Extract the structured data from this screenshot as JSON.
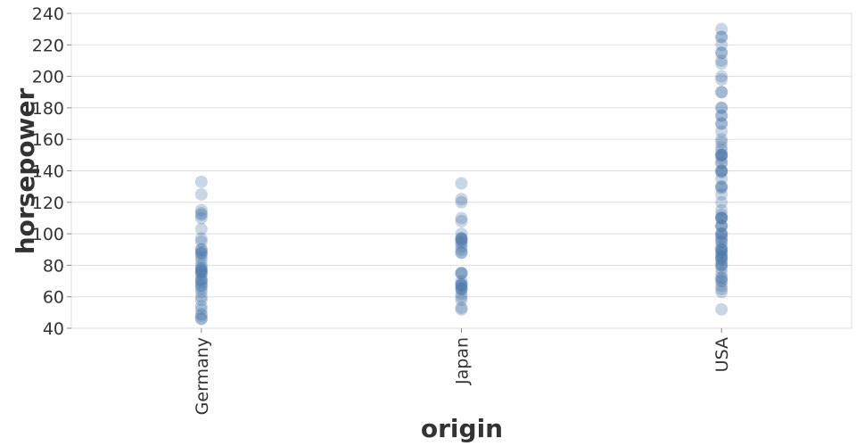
{
  "chart_data": {
    "type": "scatter",
    "xlabel": "origin",
    "ylabel": "horsepower",
    "categories": [
      "Germany",
      "Japan",
      "USA"
    ],
    "ylim": [
      40,
      240
    ],
    "yticks": [
      40,
      60,
      80,
      100,
      120,
      140,
      160,
      180,
      200,
      220,
      240
    ],
    "grid": true,
    "color": "#4c78a8",
    "point_opacity": 0.3,
    "series": [
      {
        "category": "Germany",
        "values": [
          133,
          125,
          115,
          113,
          112,
          110,
          103,
          97,
          95,
          90,
          88,
          87,
          85,
          83,
          80,
          78,
          77,
          76,
          75,
          74,
          71,
          70,
          69,
          67,
          65,
          63,
          60,
          58,
          54,
          52,
          49,
          48,
          46,
          46,
          67,
          71,
          76,
          78,
          88,
          90
        ]
      },
      {
        "category": "Japan",
        "values": [
          132,
          122,
          120,
          110,
          108,
          100,
          97,
          96,
          95,
          94,
          92,
          90,
          88,
          75,
          75,
          70,
          68,
          67,
          67,
          65,
          65,
          62,
          60,
          58,
          53,
          52,
          97,
          97,
          65,
          68,
          75,
          88
        ]
      },
      {
        "category": "USA",
        "values": [
          230,
          225,
          225,
          220,
          215,
          215,
          210,
          208,
          200,
          198,
          190,
          190,
          180,
          180,
          175,
          175,
          170,
          170,
          165,
          160,
          158,
          155,
          153,
          150,
          150,
          150,
          150,
          148,
          145,
          145,
          140,
          140,
          140,
          139,
          135,
          130,
          130,
          129,
          125,
          120,
          115,
          112,
          110,
          110,
          110,
          110,
          105,
          105,
          105,
          100,
          100,
          100,
          98,
          97,
          95,
          95,
          92,
          90,
          90,
          90,
          88,
          88,
          86,
          85,
          85,
          84,
          83,
          81,
          80,
          80,
          78,
          75,
          72,
          72,
          70,
          70,
          67,
          65,
          63,
          52
        ]
      }
    ]
  }
}
